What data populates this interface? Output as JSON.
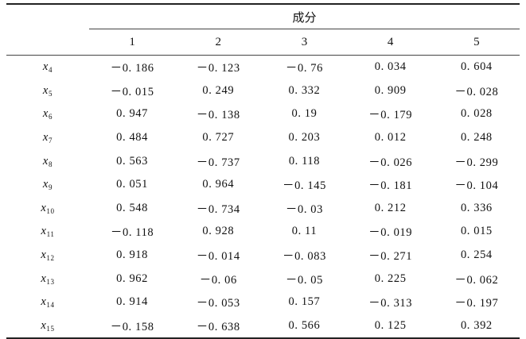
{
  "table": {
    "group_header": "成分",
    "component_headers": [
      "1",
      "2",
      "3",
      "4",
      "5"
    ],
    "rows": [
      {
        "var": "x",
        "sub": "4",
        "values": [
          "－0. 186",
          "－0. 123",
          "－0. 76",
          "0. 034",
          "0. 604"
        ]
      },
      {
        "var": "x",
        "sub": "5",
        "values": [
          "－0. 015",
          "0. 249",
          "0. 332",
          "0. 909",
          "－0. 028"
        ]
      },
      {
        "var": "x",
        "sub": "6",
        "values": [
          "0. 947",
          "－0. 138",
          "0. 19",
          "－0. 179",
          "0. 028"
        ]
      },
      {
        "var": "x",
        "sub": "7",
        "values": [
          "0. 484",
          "0. 727",
          "0. 203",
          "0. 012",
          "0. 248"
        ]
      },
      {
        "var": "x",
        "sub": "8",
        "values": [
          "0. 563",
          "－0. 737",
          "0. 118",
          "－0. 026",
          "－0. 299"
        ]
      },
      {
        "var": "x",
        "sub": "9",
        "values": [
          "0. 051",
          "0. 964",
          "－0. 145",
          "－0. 181",
          "－0. 104"
        ]
      },
      {
        "var": "x",
        "sub": "10",
        "values": [
          "0. 548",
          "－0. 734",
          "－0. 03",
          "0. 212",
          "0. 336"
        ]
      },
      {
        "var": "x",
        "sub": "11",
        "values": [
          "－0. 118",
          "0. 928",
          "0. 11",
          "－0. 019",
          "0. 015"
        ]
      },
      {
        "var": "x",
        "sub": "12",
        "values": [
          "0. 918",
          "－0. 014",
          "－0. 083",
          "－0. 271",
          "0. 254"
        ]
      },
      {
        "var": "x",
        "sub": "13",
        "values": [
          "0. 962",
          "－0. 06",
          "－0. 05",
          "0. 225",
          "－0. 062"
        ]
      },
      {
        "var": "x",
        "sub": "14",
        "values": [
          "0. 914",
          "－0. 053",
          "0. 157",
          "－0. 313",
          "－0. 197"
        ]
      },
      {
        "var": "x",
        "sub": "15",
        "values": [
          "－0. 158",
          "－0. 638",
          "0. 566",
          "0. 125",
          "0. 392"
        ]
      }
    ]
  }
}
